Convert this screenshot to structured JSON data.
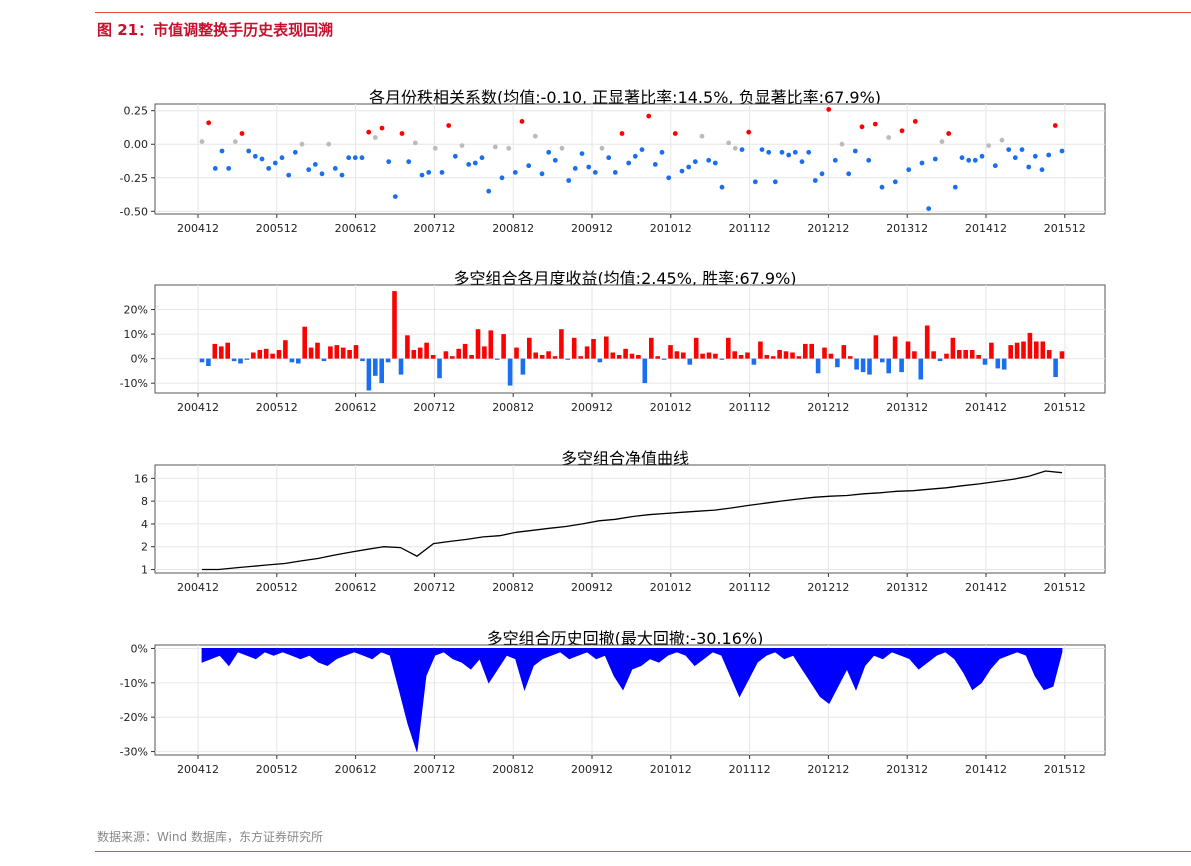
{
  "figure": {
    "title": "图 21：市值调整换手历史表现回溯",
    "source": "数据来源：Wind 数据库，东方证券研究所"
  },
  "colors": {
    "accent_red": "#c8102e",
    "line_red": "#e8464a",
    "positive": "#ff0000",
    "negative": "#1a6ff0",
    "neutral": "#bbbbbb",
    "nav": "#000000",
    "drawdown": "#0000ff",
    "panel_border": "#555555",
    "grid": "#e6e6e6"
  },
  "chart_data": [
    {
      "type": "scatter",
      "title": "各月份秩相关系数(均值:-0.10, 正显著比率:14.5%, 负显著比率:67.9%)",
      "x_ticks": [
        "200412",
        "200512",
        "200612",
        "200712",
        "200812",
        "200912",
        "201012",
        "201112",
        "201212",
        "201312",
        "201412",
        "201512"
      ],
      "y_ticks": [
        "0.25",
        "0.00",
        "-0.25",
        "-0.50"
      ],
      "y_tick_values": [
        0.25,
        0,
        -0.25,
        -0.5
      ],
      "ylim": [
        -0.52,
        0.3
      ],
      "x_range": [
        "200412",
        "201512"
      ],
      "grid": true,
      "values": [
        0.02,
        0.16,
        -0.18,
        -0.05,
        -0.18,
        0.02,
        0.08,
        -0.05,
        -0.09,
        -0.11,
        -0.18,
        -0.14,
        -0.1,
        -0.23,
        -0.06,
        0.0,
        -0.19,
        -0.15,
        -0.22,
        0.0,
        -0.18,
        -0.23,
        -0.1,
        -0.1,
        -0.1,
        0.09,
        0.05,
        0.12,
        -0.13,
        -0.39,
        0.08,
        -0.13,
        0.01,
        -0.23,
        -0.21,
        -0.03,
        -0.21,
        0.14,
        -0.09,
        -0.01,
        -0.15,
        -0.14,
        -0.1,
        -0.35,
        -0.02,
        -0.25,
        -0.03,
        -0.21,
        0.17,
        -0.16,
        0.06,
        -0.22,
        -0.06,
        -0.12,
        -0.03,
        -0.27,
        -0.18,
        -0.07,
        -0.17,
        -0.21,
        -0.03,
        -0.1,
        -0.21,
        0.08,
        -0.14,
        -0.09,
        -0.04,
        0.21,
        -0.15,
        -0.06,
        -0.25,
        0.08,
        -0.2,
        -0.17,
        -0.13,
        0.06,
        -0.12,
        -0.14,
        -0.32,
        0.01,
        -0.03,
        -0.04,
        0.09,
        -0.28,
        -0.04,
        -0.06,
        -0.28,
        -0.06,
        -0.08,
        -0.06,
        -0.13,
        -0.06,
        -0.27,
        -0.22,
        0.26,
        -0.12,
        0.0,
        -0.22,
        -0.05,
        0.13,
        -0.12,
        0.15,
        -0.32,
        0.05,
        -0.28,
        0.1,
        -0.19,
        0.17,
        -0.14,
        -0.48,
        -0.11,
        0.02,
        0.08,
        -0.32,
        -0.1,
        -0.12,
        -0.12,
        -0.09,
        -0.01,
        -0.16,
        0.03,
        -0.04,
        -0.1,
        -0.04,
        -0.17,
        -0.09,
        -0.19,
        -0.08,
        0.14,
        -0.05
      ]
    },
    {
      "type": "bar",
      "title": "多空组合各月度收益(均值:2.45%, 胜率:67.9%)",
      "x_ticks": [
        "200412",
        "200512",
        "200612",
        "200712",
        "200812",
        "200912",
        "201012",
        "201112",
        "201212",
        "201312",
        "201412",
        "201512"
      ],
      "y_ticks": [
        "20%",
        "10%",
        "0%",
        "-10%"
      ],
      "y_tick_values": [
        20,
        10,
        0,
        -10
      ],
      "ylim": [
        -14,
        30
      ],
      "x_range": [
        "200412",
        "201512"
      ],
      "grid": true,
      "values": [
        -1.5,
        -3.0,
        6.0,
        5.0,
        6.5,
        -1.0,
        -2.0,
        -0.5,
        2.5,
        3.5,
        4.0,
        2.0,
        3.5,
        7.5,
        -1.5,
        -2.0,
        13.0,
        4.5,
        6.5,
        -1.0,
        5.0,
        5.5,
        4.5,
        3.5,
        5.5,
        -1.0,
        -13.0,
        -7.0,
        -10.0,
        -1.5,
        27.5,
        -6.5,
        9.5,
        3.5,
        4.5,
        6.5,
        1.5,
        -8.0,
        3.0,
        1.0,
        4.0,
        6.0,
        1.5,
        12.0,
        5.0,
        11.5,
        -0.5,
        10.0,
        -11.0,
        4.5,
        -6.5,
        8.5,
        2.5,
        1.5,
        3.0,
        1.0,
        12.0,
        -0.5,
        8.5,
        1.0,
        5.0,
        8.0,
        -1.5,
        9.0,
        2.5,
        1.5,
        4.0,
        2.0,
        1.5,
        -10.0,
        8.5,
        1.0,
        -0.5,
        5.5,
        3.0,
        2.5,
        -2.5,
        8.5,
        2.0,
        2.5,
        2.0,
        -0.5,
        8.5,
        3.0,
        1.5,
        2.5,
        -2.5,
        7.0,
        1.5,
        1.0,
        3.5,
        3.0,
        2.5,
        1.0,
        6.0,
        6.0,
        -6.0,
        4.5,
        2.0,
        -3.5,
        5.5,
        1.0,
        -4.5,
        -5.5,
        -6.5,
        9.5,
        -1.5,
        -6.0,
        9.0,
        -5.5,
        7.0,
        3.0,
        -8.5,
        13.5,
        3.0,
        -1.0,
        2.0,
        8.5,
        3.5,
        3.5,
        3.5,
        1.5,
        -2.5,
        6.5,
        -4.0,
        -4.5,
        5.5,
        6.5,
        7.0,
        10.5,
        7.0,
        7.0,
        3.5,
        -7.5,
        3.0
      ]
    },
    {
      "type": "line",
      "title": "多空组合净值曲线",
      "x_ticks": [
        "200412",
        "200512",
        "200612",
        "200712",
        "200812",
        "200912",
        "201012",
        "201112",
        "201212",
        "201312",
        "201412",
        "201512"
      ],
      "y_ticks": [
        "16",
        "8",
        "4",
        "2",
        "1"
      ],
      "y_tick_values": [
        16,
        8,
        4,
        2,
        1
      ],
      "yscale": "log",
      "ylim": [
        0.9,
        24
      ],
      "x_range": [
        "200412",
        "201512"
      ],
      "grid": true,
      "series": [
        {
          "values": [
            1.0,
            1.0,
            1.05,
            1.1,
            1.15,
            1.2,
            1.3,
            1.4,
            1.55,
            1.7,
            1.85,
            2.0,
            1.95,
            1.5,
            2.2,
            2.35,
            2.5,
            2.7,
            2.8,
            3.1,
            3.3,
            3.5,
            3.7,
            4.0,
            4.4,
            4.6,
            5.0,
            5.3,
            5.5,
            5.7,
            5.9,
            6.1,
            6.5,
            7.0,
            7.5,
            8.0,
            8.5,
            9.0,
            9.3,
            9.5,
            10.0,
            10.3,
            10.8,
            11.0,
            11.5,
            12.0,
            12.8,
            13.5,
            14.5,
            15.5,
            17.0,
            20.0,
            19.0
          ]
        }
      ]
    },
    {
      "type": "area",
      "title": "多空组合历史回撤(最大回撤:-30.16%)",
      "x_ticks": [
        "200412",
        "200512",
        "200612",
        "200712",
        "200812",
        "200912",
        "201012",
        "201112",
        "201212",
        "201312",
        "201412",
        "201512"
      ],
      "y_ticks": [
        "0%",
        "-10%",
        "-20%",
        "-30%"
      ],
      "y_tick_values": [
        0,
        -10,
        -20,
        -30
      ],
      "ylim": [
        -31,
        1
      ],
      "x_range": [
        "200412",
        "201512"
      ],
      "grid": true,
      "series": [
        {
          "values": [
            -4,
            -3,
            -2,
            -5,
            -1,
            -2,
            -3,
            -1,
            -2,
            -1,
            -2,
            -3,
            -2,
            -4,
            -5,
            -3,
            -2,
            -1,
            -2,
            -3,
            -1,
            -2,
            -12,
            -22,
            -30,
            -8,
            -2,
            -1,
            -3,
            -4,
            -6,
            -3,
            -10,
            -6,
            -2,
            -3,
            -12,
            -5,
            -3,
            -2,
            -1,
            -3,
            -2,
            -1,
            -3,
            -2,
            -8,
            -12,
            -6,
            -5,
            -3,
            -4,
            -2,
            -1,
            -2,
            -5,
            -3,
            -1,
            -2,
            -8,
            -14,
            -9,
            -4,
            -2,
            -1,
            -3,
            -2,
            -6,
            -10,
            -14,
            -16,
            -11,
            -6,
            -12,
            -5,
            -2,
            -3,
            -1,
            -2,
            -3,
            -6,
            -4,
            -2,
            -1,
            -3,
            -7,
            -12,
            -10,
            -6,
            -3,
            -2,
            -1,
            -2,
            -8,
            -12,
            -11,
            -1
          ]
        }
      ]
    }
  ]
}
